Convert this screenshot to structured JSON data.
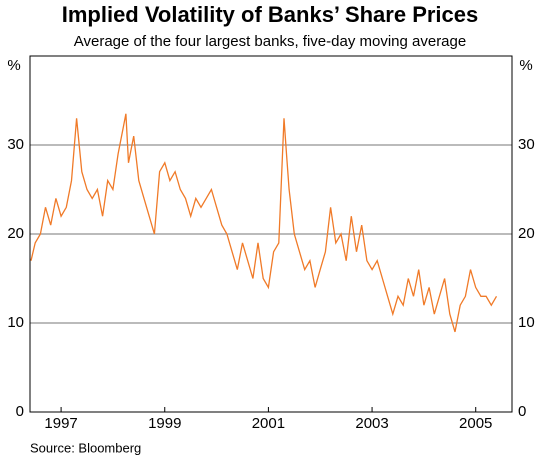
{
  "chart_data": {
    "type": "line",
    "title": "Implied Volatility of Banks’ Share Prices",
    "subtitle": "Average of the four largest banks, five-day moving average",
    "y_unit": "%",
    "source": "Source: Bloomberg",
    "series": [
      {
        "name": "Implied volatility",
        "color": "#f07a28",
        "x": [
          1996.92,
          1997.0,
          1997.1,
          1997.2,
          1997.3,
          1997.4,
          1997.5,
          1997.6,
          1997.7,
          1997.8,
          1997.9,
          1998.0,
          1998.1,
          1998.2,
          1998.3,
          1998.4,
          1998.5,
          1998.6,
          1998.7,
          1998.75,
          1998.8,
          1998.9,
          1999.0,
          1999.1,
          1999.2,
          1999.3,
          1999.4,
          1999.5,
          1999.6,
          1999.7,
          1999.8,
          1999.9,
          2000.0,
          2000.1,
          2000.2,
          2000.3,
          2000.4,
          2000.5,
          2000.6,
          2000.7,
          2000.8,
          2000.9,
          2001.0,
          2001.1,
          2001.2,
          2001.3,
          2001.4,
          2001.5,
          2001.6,
          2001.7,
          2001.8,
          2001.85,
          2001.9,
          2002.0,
          2002.1,
          2002.2,
          2002.3,
          2002.4,
          2002.5,
          2002.6,
          2002.7,
          2002.8,
          2002.9,
          2003.0,
          2003.1,
          2003.2,
          2003.3,
          2003.4,
          2003.5,
          2003.6,
          2003.7,
          2003.8,
          2003.9,
          2004.0,
          2004.1,
          2004.2,
          2004.3,
          2004.4,
          2004.5,
          2004.6,
          2004.7,
          2004.8,
          2004.9,
          2005.0,
          2005.1,
          2005.2,
          2005.3,
          2005.4,
          2005.5,
          2005.6,
          2005.7,
          2005.8,
          2005.9
        ],
        "values": [
          17,
          19,
          20,
          23,
          21,
          24,
          22,
          23,
          26,
          33,
          27,
          25,
          24,
          25,
          22,
          26,
          25,
          29,
          32,
          33.5,
          28,
          31,
          26,
          24,
          22,
          20,
          27,
          28,
          26,
          27,
          25,
          24,
          22,
          24,
          23,
          24,
          25,
          23,
          21,
          20,
          18,
          16,
          19,
          17,
          15,
          19,
          15,
          14,
          18,
          19,
          33,
          29,
          25,
          20,
          18,
          16,
          17,
          14,
          16,
          18,
          23,
          19,
          20,
          17,
          22,
          18,
          21,
          17,
          16,
          17,
          15,
          13,
          11,
          13,
          12,
          15,
          13,
          16,
          12,
          14,
          11,
          13,
          15,
          11,
          9,
          12,
          13,
          16,
          14,
          13,
          13,
          12,
          13
        ]
      }
    ],
    "xlim": [
      1996.9,
      2006.2
    ],
    "xticks": [
      {
        "value": 1997.5,
        "label": "1997"
      },
      {
        "value": 1999.5,
        "label": "1999"
      },
      {
        "value": 2001.5,
        "label": "2001"
      },
      {
        "value": 2003.5,
        "label": "2003"
      },
      {
        "value": 2005.5,
        "label": "2005"
      }
    ],
    "ylim": [
      0,
      40
    ],
    "yticks": [
      0,
      10,
      20,
      30
    ],
    "grid": true
  }
}
